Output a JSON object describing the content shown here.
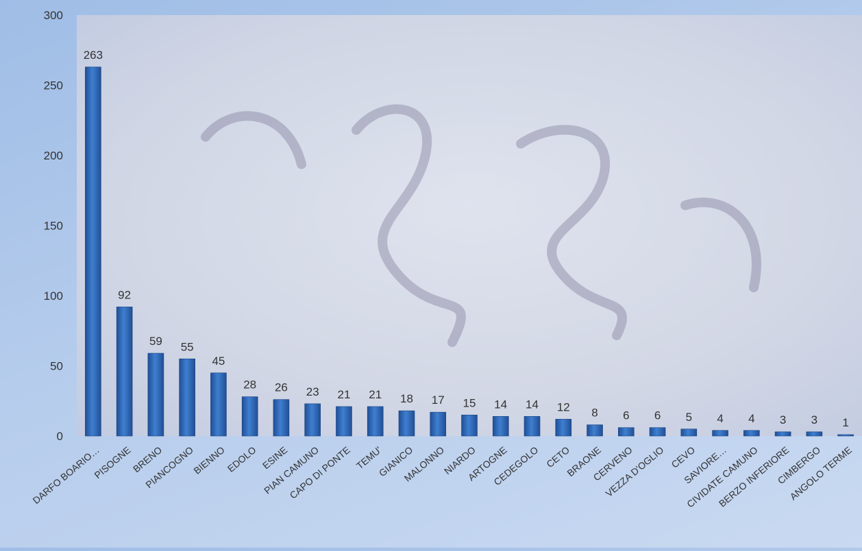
{
  "chart_data": {
    "type": "bar",
    "title": "",
    "xlabel": "",
    "ylabel": "",
    "ylim": [
      0,
      300
    ],
    "yticks": [
      0,
      50,
      100,
      150,
      200,
      250,
      300
    ],
    "grid": false,
    "legend": "none",
    "bar_color": "#2f6cc0",
    "categories": [
      "DARFO BOARIO…",
      "PISOGNE",
      "BRENO",
      "PIANCOGNO",
      "BIENNO",
      "EDOLO",
      "ESINE",
      "PIAN CAMUNO",
      "CAPO DI PONTE",
      "TEMU'",
      "GIANICO",
      "MALONNO",
      "NIARDO",
      "ARTOGNE",
      "CEDEGOLO",
      "CETO",
      "BRAONE",
      "CERVENO",
      "VEZZA D'OGLIO",
      "CEVO",
      "SAVIORE…",
      "CIVIDATE CAMUNO",
      "BERZO INFERIORE",
      "CIMBERGO",
      "ANGOLO TERME"
    ],
    "values": [
      263,
      92,
      59,
      55,
      45,
      28,
      26,
      23,
      21,
      21,
      18,
      17,
      15,
      14,
      14,
      12,
      8,
      6,
      6,
      5,
      4,
      4,
      3,
      3,
      1
    ]
  }
}
